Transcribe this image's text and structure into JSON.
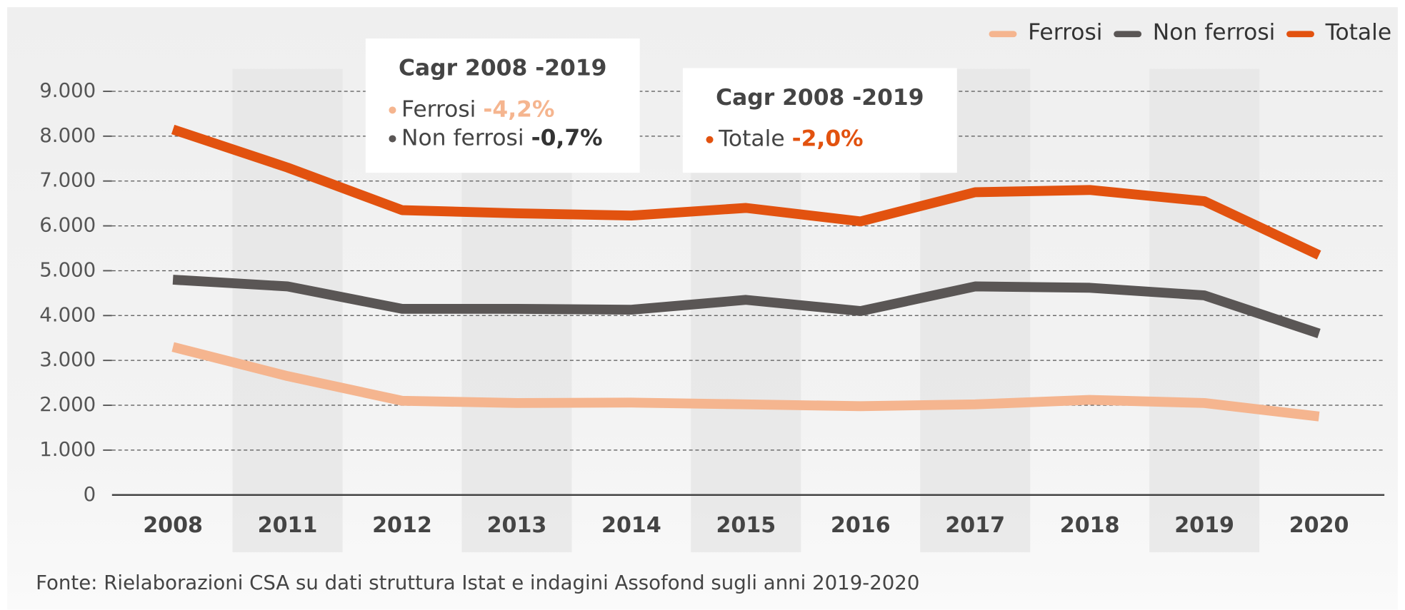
{
  "chart_data": {
    "type": "line",
    "categories": [
      "2008",
      "2011",
      "2012",
      "2013",
      "2014",
      "2015",
      "2016",
      "2017",
      "2018",
      "2019",
      "2020"
    ],
    "series": [
      {
        "name": "Ferrosi",
        "color": "#f5b58f",
        "values": [
          3300,
          2650,
          2100,
          2050,
          2060,
          2020,
          1980,
          2020,
          2120,
          2050,
          1750
        ]
      },
      {
        "name": "Non ferrosi",
        "color": "#5a5655",
        "values": [
          4800,
          4650,
          4150,
          4150,
          4130,
          4350,
          4100,
          4650,
          4620,
          4450,
          3600
        ]
      },
      {
        "name": "Totale",
        "color": "#e2520f",
        "values": [
          8150,
          7300,
          6350,
          6280,
          6230,
          6400,
          6100,
          6750,
          6800,
          6550,
          5350
        ]
      }
    ],
    "ylim": [
      0,
      9000
    ],
    "yticks": [
      0,
      {
        "value": 1000,
        "label": "1.000"
      },
      {
        "value": 2000,
        "label": "2.000"
      },
      {
        "value": 3000,
        "label": "3.000"
      },
      {
        "value": 4000,
        "label": "4.000"
      },
      {
        "value": 5000,
        "label": "5.000"
      },
      {
        "value": 6000,
        "label": "6.000"
      },
      {
        "value": 7000,
        "label": "7.000"
      },
      {
        "value": 8000,
        "label": "8.000"
      },
      {
        "value": 9000,
        "label": "9.000"
      }
    ],
    "grid": true,
    "legend": "top-right",
    "annotations": [
      {
        "title": "Cagr 2008 -2019",
        "items": [
          {
            "label": "Ferrosi",
            "value": "-4,2%",
            "color": "#f5b58f"
          },
          {
            "label": "Non ferrosi",
            "value": "-0,7%",
            "color": "#5a5655"
          }
        ]
      },
      {
        "title": "Cagr 2008 -2019",
        "items": [
          {
            "label": "Totale",
            "value": "-2,0%",
            "color": "#e2520f"
          }
        ]
      }
    ],
    "source": "Fonte: Rielaborazioni CSA su dati struttura Istat e indagini Assofond sugli anni 2019-2020"
  }
}
